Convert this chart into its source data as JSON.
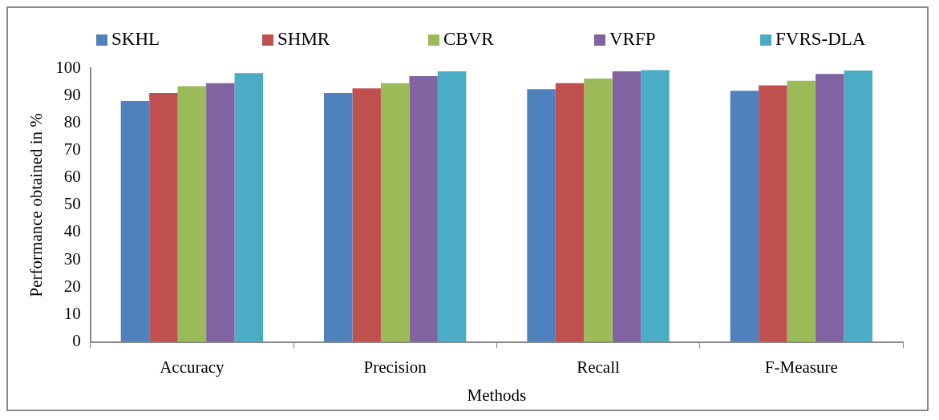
{
  "chart_data": {
    "type": "bar",
    "xlabel": "Methods",
    "ylabel": "Performance obtained in %",
    "categories": [
      "Accuracy",
      "Precision",
      "Recall",
      "F-Measure"
    ],
    "series": [
      {
        "name": "SKHL",
        "color": "#4f81bd",
        "values": [
          88.0,
          90.9,
          92.3,
          91.7
        ]
      },
      {
        "name": "SHMR",
        "color": "#c0504d",
        "values": [
          90.9,
          92.6,
          94.5,
          93.7
        ]
      },
      {
        "name": "CBVR",
        "color": "#9bbb59",
        "values": [
          93.4,
          94.5,
          96.2,
          95.4
        ]
      },
      {
        "name": "VRFP",
        "color": "#8064a2",
        "values": [
          94.5,
          97.1,
          98.8,
          97.9
        ]
      },
      {
        "name": "FVRS-DLA",
        "color": "#4bacc6",
        "values": [
          98.2,
          98.8,
          99.3,
          99.1
        ]
      }
    ],
    "ylim": [
      0,
      100
    ],
    "yticks": [
      0,
      10,
      20,
      30,
      40,
      50,
      60,
      70,
      80,
      90,
      100
    ],
    "grid": false,
    "legend": "top"
  }
}
